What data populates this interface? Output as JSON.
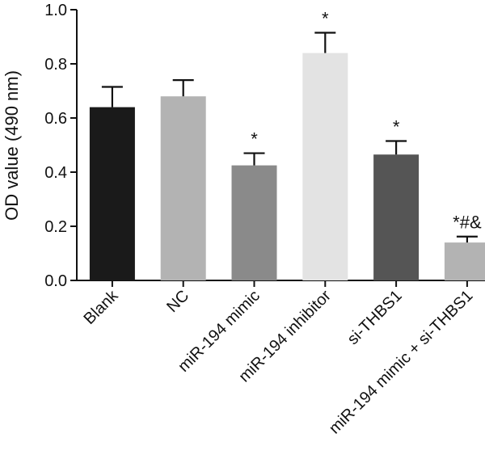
{
  "chart_data": {
    "type": "bar",
    "ylabel": "OD value (490 nm)",
    "xlabel": "",
    "ylim": [
      0,
      1.0
    ],
    "yticks": [
      0.0,
      0.2,
      0.4,
      0.6,
      0.8,
      1.0
    ],
    "ytick_labels": [
      "0.0",
      "0.2",
      "0.4",
      "0.6",
      "0.8",
      "1.0"
    ],
    "grid": false,
    "categories": [
      "Blank",
      "NC",
      "miR-194 mimic",
      "miR-194 inhibitor",
      "si-THBS1",
      "miR-194 mimic + si-THBS1"
    ],
    "values": [
      0.64,
      0.68,
      0.425,
      0.84,
      0.465,
      0.14
    ],
    "errors": [
      0.075,
      0.06,
      0.045,
      0.075,
      0.05,
      0.022
    ],
    "annotations": [
      "",
      "",
      "*",
      "*",
      "*",
      "*#&"
    ],
    "bar_colors": [
      "#1a1a1a",
      "#b3b3b3",
      "#8a8a8a",
      "#e3e3e3",
      "#555555",
      "#b3b3b3"
    ]
  }
}
